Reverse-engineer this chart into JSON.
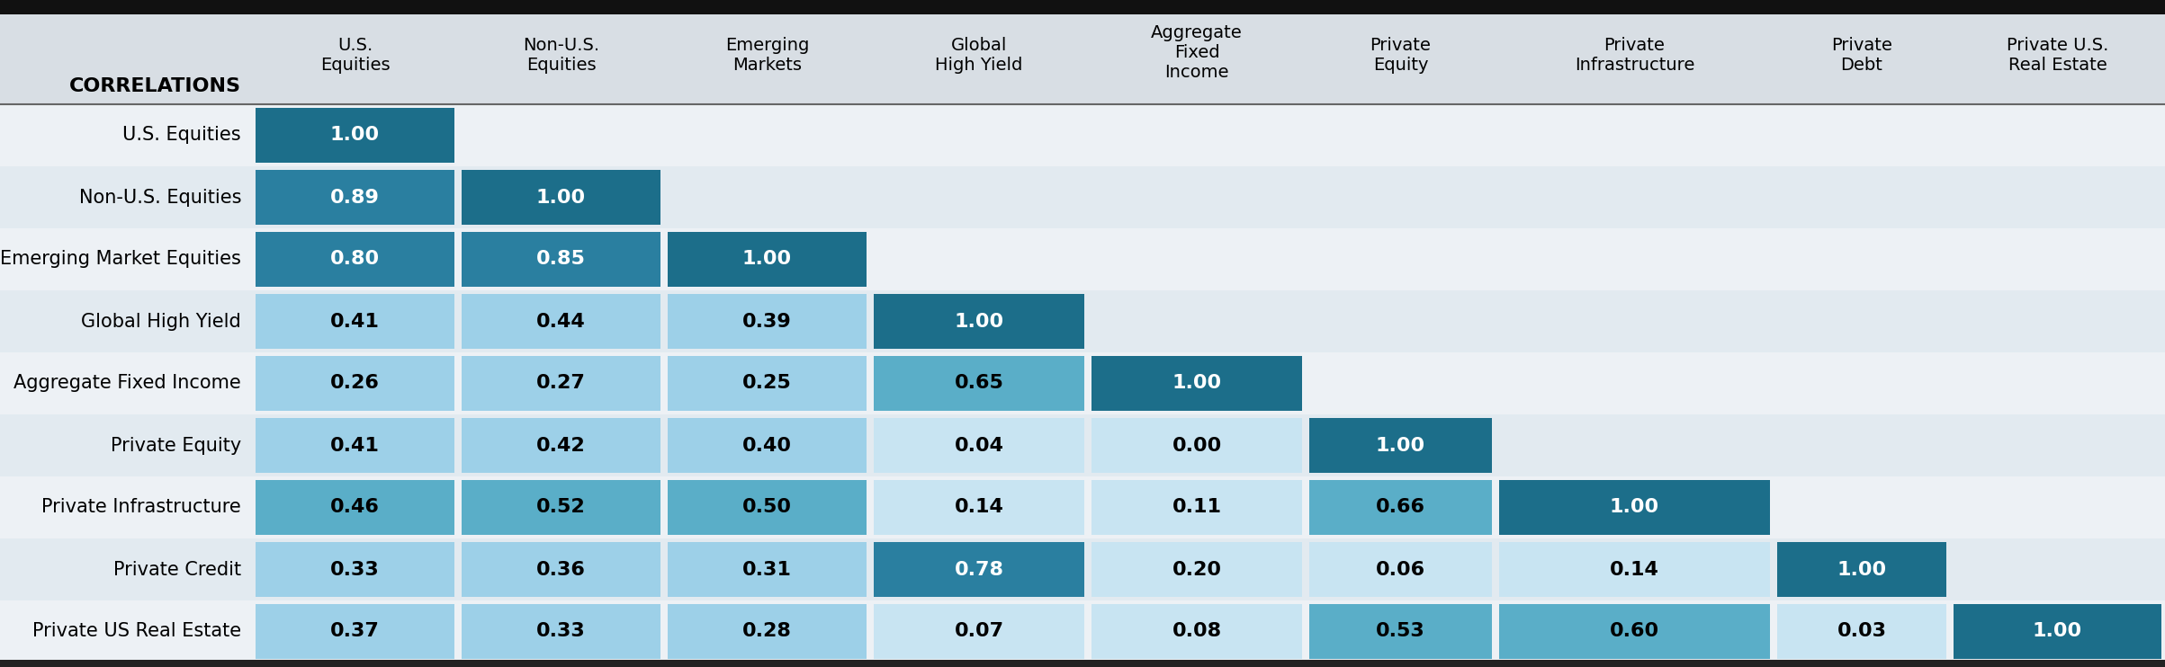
{
  "row_labels": [
    "U.S. Equities",
    "Non-U.S. Equities",
    "Emerging Market Equities",
    "Global High Yield",
    "Aggregate Fixed Income",
    "Private Equity",
    "Private Infrastructure",
    "Private Credit",
    "Private US Real Estate"
  ],
  "col_headers": [
    [
      "U.S.",
      "Equities",
      ""
    ],
    [
      "Non-U.S.",
      "Equities",
      ""
    ],
    [
      "Emerging",
      "Markets",
      ""
    ],
    [
      "Global",
      "High Yield",
      ""
    ],
    [
      "Aggregate",
      "Fixed",
      "Income"
    ],
    [
      "Private",
      "Equity",
      ""
    ],
    [
      "Private",
      "Infrastructure",
      ""
    ],
    [
      "Private",
      "Debt",
      ""
    ],
    [
      "Private U.S.",
      "Real Estate",
      ""
    ]
  ],
  "header_label": "CORRELATIONS",
  "matrix": [
    [
      1.0,
      null,
      null,
      null,
      null,
      null,
      null,
      null,
      null
    ],
    [
      0.89,
      1.0,
      null,
      null,
      null,
      null,
      null,
      null,
      null
    ],
    [
      0.8,
      0.85,
      1.0,
      null,
      null,
      null,
      null,
      null,
      null
    ],
    [
      0.41,
      0.44,
      0.39,
      1.0,
      null,
      null,
      null,
      null,
      null
    ],
    [
      0.26,
      0.27,
      0.25,
      0.65,
      1.0,
      null,
      null,
      null,
      null
    ],
    [
      0.41,
      0.42,
      0.4,
      0.04,
      0.0,
      1.0,
      null,
      null,
      null
    ],
    [
      0.46,
      0.52,
      0.5,
      0.14,
      0.11,
      0.66,
      1.0,
      null,
      null
    ],
    [
      0.33,
      0.36,
      0.31,
      0.78,
      0.2,
      0.06,
      0.14,
      1.0,
      null
    ],
    [
      0.37,
      0.33,
      0.28,
      0.07,
      0.08,
      0.53,
      0.6,
      0.03,
      1.0
    ]
  ],
  "cell_colors": {
    "diagonal": "#1c6e8a",
    "dark": "#2a7fa0",
    "medium": "#5aaec8",
    "light": "#9dd0e8",
    "very_light": "#c8e4f2"
  },
  "bg_color": "#d8dee4",
  "row_bg_even": "#edf1f5",
  "row_bg_odd": "#e2eaf0",
  "top_bar_color": "#111111",
  "header_sep_color": "#888888",
  "bottom_bar_color": "#222222"
}
